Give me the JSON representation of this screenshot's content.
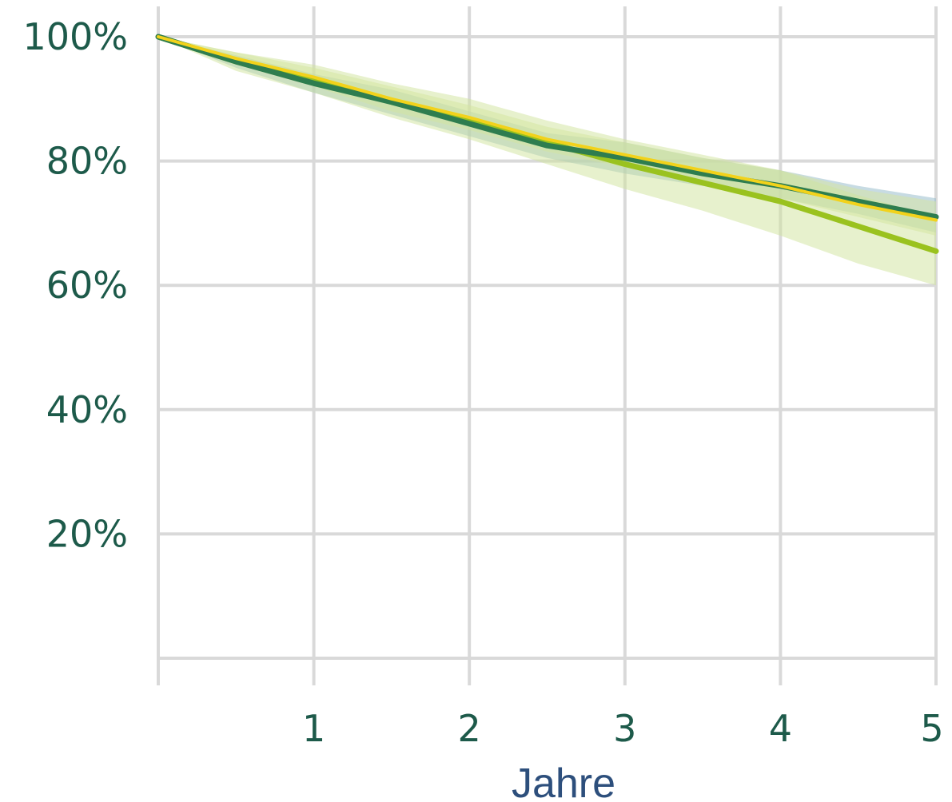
{
  "chart_data": {
    "type": "line",
    "title": "",
    "xlabel": "Jahre",
    "ylabel": "",
    "xlim": [
      0,
      5
    ],
    "ylim": [
      0,
      100
    ],
    "grid": true,
    "legend": "none",
    "y_ticks": [
      {
        "value": 100,
        "label": "100%"
      },
      {
        "value": 80,
        "label": "80%"
      },
      {
        "value": 60,
        "label": "60%"
      },
      {
        "value": 40,
        "label": "40%"
      },
      {
        "value": 20,
        "label": "20%"
      }
    ],
    "x_ticks": [
      {
        "value": 1,
        "label": "1"
      },
      {
        "value": 2,
        "label": "2"
      },
      {
        "value": 3,
        "label": "3"
      },
      {
        "value": 4,
        "label": "4"
      },
      {
        "value": 5,
        "label": "5"
      }
    ],
    "series": [
      {
        "color": "#2e7d4f",
        "band_color": "#8fb8c8",
        "x": [
          0,
          0.5,
          1,
          1.5,
          2,
          2.5,
          3,
          3.5,
          4,
          4.5,
          5
        ],
        "y": [
          100,
          96,
          92.5,
          89.5,
          86,
          82.5,
          80.5,
          78,
          76,
          73.5,
          71
        ],
        "lower": [
          100,
          95,
          91,
          87.5,
          84,
          80.5,
          78,
          76,
          74,
          71.5,
          68.5
        ],
        "upper": [
          100,
          97,
          94,
          91.5,
          88,
          84.5,
          83,
          80.5,
          78.5,
          76,
          74
        ]
      },
      {
        "color": "#f2d21b",
        "band_color": "#d8e6a0",
        "x": [
          0,
          0.5,
          1,
          1.5,
          2,
          2.5,
          3,
          3.5,
          4,
          4.5,
          5
        ],
        "y": [
          100,
          96.5,
          93.5,
          90,
          87,
          83.5,
          81,
          78.5,
          76,
          73,
          70.5
        ],
        "lower": [
          100,
          95.5,
          92,
          88,
          85,
          81.5,
          79,
          76.5,
          74,
          71,
          68
        ],
        "upper": [
          100,
          97.5,
          95,
          92,
          89,
          85.5,
          83,
          80.5,
          78.5,
          75.5,
          73.5
        ]
      },
      {
        "color": "#9ac21f",
        "band_color": "#cfe39b",
        "x": [
          0,
          0.5,
          1,
          1.5,
          2,
          2.5,
          3,
          3.5,
          4,
          4.5,
          5
        ],
        "y": [
          100,
          96,
          93,
          89.5,
          86.5,
          83,
          79.5,
          76.5,
          73.5,
          69.5,
          65.5
        ],
        "lower": [
          100,
          94.5,
          91,
          87,
          83.5,
          79.5,
          75.5,
          72,
          68,
          63.5,
          60
        ],
        "upper": [
          100,
          97.5,
          95.5,
          92.5,
          90,
          86.5,
          83.5,
          81,
          78.5,
          74.5,
          71
        ]
      }
    ]
  }
}
